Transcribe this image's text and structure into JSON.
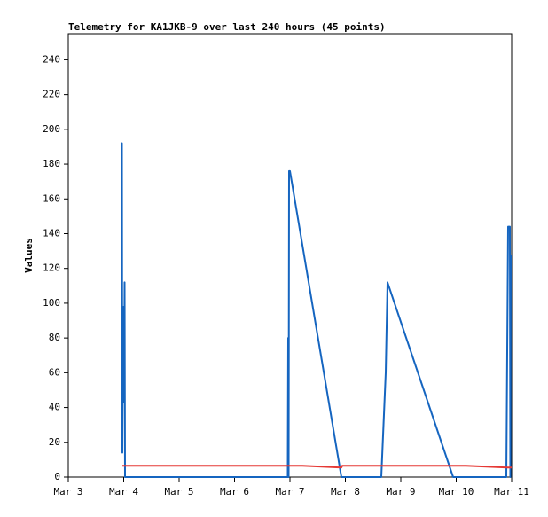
{
  "chart_data": {
    "type": "line",
    "title": "Telemetry for KA1JKB-9 over last 240 hours (45 points)",
    "y_label": "Values",
    "xlim": [
      3,
      11
    ],
    "xticks": [
      {
        "value": 3,
        "label": "Mar 3"
      },
      {
        "value": 4,
        "label": "Mar 4"
      },
      {
        "value": 5,
        "label": "Mar 5"
      },
      {
        "value": 6,
        "label": "Mar 6"
      },
      {
        "value": 7,
        "label": "Mar 7"
      },
      {
        "value": 8,
        "label": "Mar 8"
      },
      {
        "value": 9,
        "label": "Mar 9"
      },
      {
        "value": 10,
        "label": "Mar 10"
      },
      {
        "value": 11,
        "label": "Mar 11"
      }
    ],
    "ylim": [
      0,
      255
    ],
    "yticks": [
      0,
      20,
      40,
      60,
      80,
      100,
      120,
      140,
      160,
      180,
      200,
      220,
      240
    ],
    "grid": false,
    "series": [
      {
        "color": "#1565c0",
        "x": [
          3.96,
          3.968,
          3.976,
          3.984,
          3.992,
          4.0,
          4.008,
          4.016,
          4.024,
          6.96,
          6.968,
          6.976,
          6.984,
          7.0,
          7.928,
          8.648,
          8.728,
          8.76,
          9.944,
          10.904,
          10.92,
          10.936,
          10.968,
          10.976,
          10.984
        ],
        "values": [
          48,
          192,
          14,
          70,
          43,
          98,
          43,
          112,
          0,
          0,
          80,
          0,
          176,
          176,
          0,
          0,
          60,
          112,
          0,
          0,
          72,
          144,
          144,
          0,
          128
        ]
      },
      {
        "color": "#e53935",
        "x": [
          3.976,
          7.224,
          7.928,
          7.944,
          10.176,
          10.92,
          11.0
        ],
        "values": [
          6.5,
          6.5,
          5.5,
          6.5,
          6.5,
          5.5,
          5.5
        ]
      }
    ]
  }
}
